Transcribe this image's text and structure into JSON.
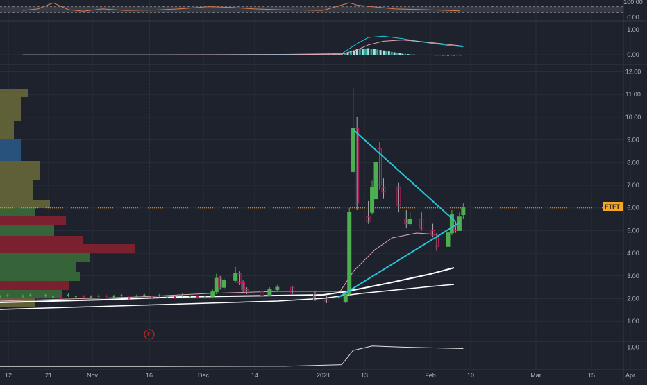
{
  "colors": {
    "background": "#1e222d",
    "grid": "#2a2e39",
    "up": "#4caf50",
    "down": "#c2185b",
    "trendline": "#26c6da",
    "price_line": "#f5a623",
    "ma_white": "#ffffff",
    "ma_pink": "#e1a7b5",
    "rsi": "#e07b4f",
    "macd_line": "#26c6da",
    "signal_line": "#e1a7b5",
    "volume_line": "#e0e0e0",
    "event_marker": "#d32f2f"
  },
  "ticker": "FTFT",
  "event_marker_label": "E",
  "chart_data": [
    {
      "type": "line",
      "panel": "rsi",
      "y_ticks": [
        "100.00",
        "0.00"
      ],
      "ylim": [
        0,
        100
      ],
      "band": [
        30,
        70
      ],
      "x": [
        "2020-10-12",
        "2020-10-16",
        "2020-10-20",
        "2020-10-24",
        "2020-10-28",
        "2020-11-02",
        "2020-11-08",
        "2020-11-16",
        "2020-11-22",
        "2020-11-30",
        "2020-12-06",
        "2020-12-12",
        "2020-12-18",
        "2020-12-24",
        "2020-12-30",
        "2021-01-06",
        "2021-01-08",
        "2021-01-12",
        "2021-01-18",
        "2021-01-26",
        "2021-02-04"
      ],
      "series": [
        {
          "values": [
            45,
            55,
            95,
            50,
            40,
            55,
            45,
            48,
            55,
            70,
            65,
            55,
            50,
            48,
            45,
            95,
            80,
            70,
            55,
            50,
            42
          ]
        }
      ]
    },
    {
      "type": "line",
      "panel": "macd",
      "y_ticks": [
        "1.00",
        "0.00"
      ],
      "ylim": [
        -0.3,
        1.2
      ],
      "x": [
        "2020-10-12",
        "2020-11-16",
        "2020-12-20",
        "2021-01-04",
        "2021-01-08",
        "2021-01-11",
        "2021-01-15",
        "2021-01-20",
        "2021-01-26",
        "2021-02-01",
        "2021-02-05"
      ],
      "series": [
        {
          "values": [
            0,
            0,
            0.02,
            0.05,
            0.45,
            0.7,
            0.75,
            0.65,
            0.5,
            0.38,
            0.32
          ]
        },
        {
          "values": [
            0,
            0,
            0.01,
            0.03,
            0.2,
            0.4,
            0.55,
            0.6,
            0.52,
            0.42,
            0.35
          ]
        }
      ]
    },
    {
      "type": "candlestick",
      "panel": "price",
      "y_ticks": [
        "12.00",
        "11.00",
        "10.00",
        "9.00",
        "8.00",
        "7.00",
        "6.00",
        "5.00",
        "4.00",
        "3.00",
        "2.00",
        "1.00"
      ],
      "ylim": [
        0.6,
        12.3
      ],
      "x_ticks": [
        "12",
        "21",
        "Nov",
        "16",
        "Dec",
        "14",
        "2021",
        "13",
        "Feb",
        "10",
        "Mar",
        "15",
        "Apr"
      ],
      "last_price": 6.0,
      "candles": [
        {
          "date": "2020-12-01",
          "o": 2.1,
          "h": 2.4,
          "l": 2.05,
          "c": 2.3
        },
        {
          "date": "2020-12-02",
          "o": 2.3,
          "h": 3.1,
          "l": 2.2,
          "c": 2.9
        },
        {
          "date": "2020-12-03",
          "o": 2.9,
          "h": 3.0,
          "l": 2.4,
          "c": 2.5
        },
        {
          "date": "2020-12-04",
          "o": 2.5,
          "h": 2.9,
          "l": 2.4,
          "c": 2.8
        },
        {
          "date": "2020-12-07",
          "o": 2.8,
          "h": 3.4,
          "l": 2.7,
          "c": 3.1
        },
        {
          "date": "2020-12-08",
          "o": 3.1,
          "h": 3.2,
          "l": 2.6,
          "c": 2.7
        },
        {
          "date": "2020-12-09",
          "o": 2.7,
          "h": 2.8,
          "l": 2.3,
          "c": 2.4
        },
        {
          "date": "2020-12-10",
          "o": 2.4,
          "h": 2.5,
          "l": 2.2,
          "c": 2.3
        },
        {
          "date": "2020-12-14",
          "o": 2.3,
          "h": 2.4,
          "l": 2.1,
          "c": 2.15
        },
        {
          "date": "2020-12-16",
          "o": 2.15,
          "h": 2.5,
          "l": 2.1,
          "c": 2.4
        },
        {
          "date": "2020-12-18",
          "o": 2.4,
          "h": 2.6,
          "l": 2.3,
          "c": 2.5
        },
        {
          "date": "2020-12-22",
          "o": 2.5,
          "h": 2.55,
          "l": 2.2,
          "c": 2.25
        },
        {
          "date": "2020-12-28",
          "o": 2.2,
          "h": 2.3,
          "l": 1.9,
          "c": 1.95
        },
        {
          "date": "2020-12-31",
          "o": 1.95,
          "h": 2.1,
          "l": 1.8,
          "c": 1.85
        },
        {
          "date": "2021-01-05",
          "o": 1.85,
          "h": 2.3,
          "l": 1.8,
          "c": 2.2
        },
        {
          "date": "2021-01-06",
          "o": 2.2,
          "h": 6.0,
          "l": 2.1,
          "c": 5.8
        },
        {
          "date": "2021-01-07",
          "o": 7.6,
          "h": 11.3,
          "l": 7.5,
          "c": 9.5
        },
        {
          "date": "2021-01-08",
          "o": 9.5,
          "h": 10.0,
          "l": 5.9,
          "c": 6.2
        },
        {
          "date": "2021-01-11",
          "o": 5.6,
          "h": 6.3,
          "l": 5.3,
          "c": 5.4
        },
        {
          "date": "2021-01-12",
          "o": 5.8,
          "h": 7.2,
          "l": 5.7,
          "c": 6.9
        },
        {
          "date": "2021-01-13",
          "o": 6.4,
          "h": 8.3,
          "l": 6.2,
          "c": 8.0
        },
        {
          "date": "2021-01-14",
          "o": 8.6,
          "h": 8.9,
          "l": 6.8,
          "c": 7.0
        },
        {
          "date": "2021-01-15",
          "o": 6.9,
          "h": 7.3,
          "l": 6.4,
          "c": 6.7
        },
        {
          "date": "2021-01-19",
          "o": 6.9,
          "h": 7.1,
          "l": 5.8,
          "c": 6.1
        },
        {
          "date": "2021-01-21",
          "o": 5.5,
          "h": 5.9,
          "l": 5.1,
          "c": 5.3
        },
        {
          "date": "2021-01-22",
          "o": 5.3,
          "h": 5.8,
          "l": 5.2,
          "c": 5.5
        },
        {
          "date": "2021-01-25",
          "o": 5.5,
          "h": 5.8,
          "l": 5.0,
          "c": 5.1
        },
        {
          "date": "2021-01-28",
          "o": 5.0,
          "h": 5.3,
          "l": 4.7,
          "c": 4.8
        },
        {
          "date": "2021-01-29",
          "o": 4.7,
          "h": 4.9,
          "l": 4.1,
          "c": 4.3
        },
        {
          "date": "2021-02-01",
          "o": 4.3,
          "h": 5.1,
          "l": 4.2,
          "c": 4.9
        },
        {
          "date": "2021-02-02",
          "o": 4.9,
          "h": 5.9,
          "l": 4.8,
          "c": 5.7
        },
        {
          "date": "2021-02-03",
          "o": 5.2,
          "h": 5.4,
          "l": 4.9,
          "c": 5.0
        },
        {
          "date": "2021-02-04",
          "o": 5.0,
          "h": 5.8,
          "l": 5.0,
          "c": 5.6
        },
        {
          "date": "2021-02-05",
          "o": 5.7,
          "h": 6.2,
          "l": 5.5,
          "c": 6.0
        }
      ]
    },
    {
      "type": "line",
      "panel": "volume",
      "y_ticks": [
        "1.00"
      ],
      "ylim": [
        0,
        1.2
      ],
      "x": [
        "2020-10-06",
        "2020-11-16",
        "2020-12-20",
        "2021-01-04",
        "2021-01-07",
        "2021-01-12",
        "2021-01-20",
        "2021-02-05"
      ],
      "series": [
        {
          "values": [
            0.12,
            0.12,
            0.13,
            0.2,
            0.85,
            1.05,
            1.0,
            0.93
          ]
        }
      ]
    }
  ]
}
